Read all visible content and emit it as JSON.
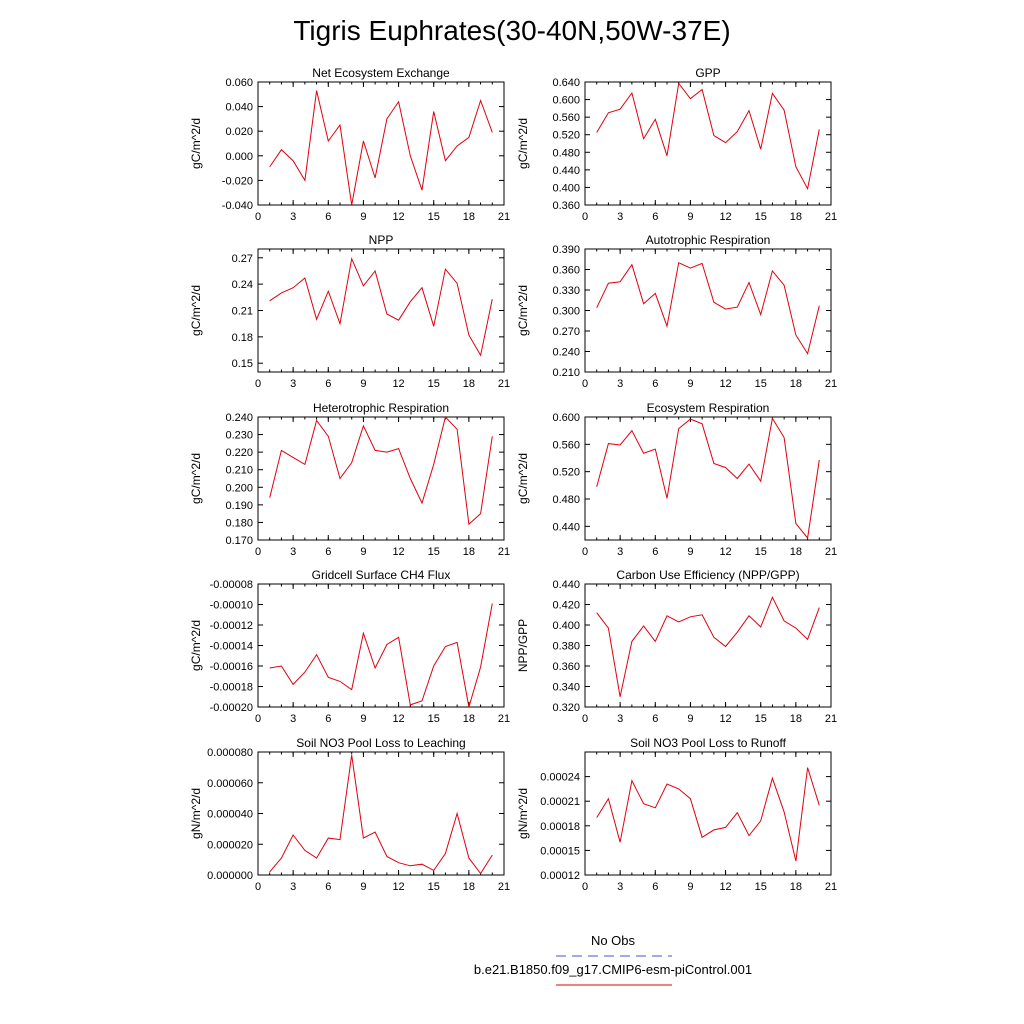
{
  "figure": {
    "title": "Tigris Euphrates(30-40N,50W-37E)",
    "line_color": "#e0000f",
    "obs_color": "#5050d0",
    "legend": [
      {
        "label": "No Obs",
        "color": "#5050d0",
        "dash": true
      },
      {
        "label": "b.e21.B1850.f09_g17.CMIP6-esm-piControl.001",
        "color": "#e0000f",
        "dash": false
      }
    ]
  },
  "chart_data": [
    {
      "type": "line",
      "title": "Net Ecosystem Exchange",
      "ylabel": "gC/m^2/d",
      "xlim": [
        0,
        21
      ],
      "xticks": [
        "0",
        "3",
        "6",
        "9",
        "12",
        "15",
        "18",
        "21"
      ],
      "ylim": [
        -0.04,
        0.06
      ],
      "yticks": [
        "-0.040",
        "-0.020",
        "0.000",
        "0.020",
        "0.040",
        "0.060"
      ],
      "x": [
        1,
        2,
        3,
        4,
        5,
        6,
        7,
        8,
        9,
        10,
        11,
        12,
        13,
        14,
        15,
        16,
        17,
        18,
        19,
        20
      ],
      "values": [
        -0.009,
        0.005,
        -0.004,
        -0.02,
        0.053,
        0.012,
        0.025,
        -0.04,
        0.012,
        -0.018,
        0.03,
        0.044,
        0.0,
        -0.028,
        0.036,
        -0.004,
        0.008,
        0.015,
        0.045,
        0.019
      ]
    },
    {
      "type": "line",
      "title": "GPP",
      "ylabel": "gC/m^2/d",
      "xlim": [
        0,
        21
      ],
      "xticks": [
        "0",
        "3",
        "6",
        "9",
        "12",
        "15",
        "18",
        "21"
      ],
      "ylim": [
        0.36,
        0.64
      ],
      "yticks": [
        "0.360",
        "0.400",
        "0.440",
        "0.480",
        "0.520",
        "0.560",
        "0.600",
        "0.640"
      ],
      "x": [
        1,
        2,
        3,
        4,
        5,
        6,
        7,
        8,
        9,
        10,
        11,
        12,
        13,
        14,
        15,
        16,
        17,
        18,
        19,
        20
      ],
      "values": [
        0.525,
        0.57,
        0.578,
        0.615,
        0.511,
        0.555,
        0.472,
        0.637,
        0.602,
        0.623,
        0.518,
        0.502,
        0.527,
        0.575,
        0.487,
        0.614,
        0.576,
        0.447,
        0.397,
        0.532
      ]
    },
    {
      "type": "line",
      "title": "NPP",
      "ylabel": "gC/m^2/d",
      "xlim": [
        0,
        21
      ],
      "xticks": [
        "0",
        "3",
        "6",
        "9",
        "12",
        "15",
        "18",
        "21"
      ],
      "ylim": [
        0.14,
        0.28
      ],
      "yticks": [
        "0.15",
        "0.18",
        "0.21",
        "0.24",
        "0.27"
      ],
      "x": [
        1,
        2,
        3,
        4,
        5,
        6,
        7,
        8,
        9,
        10,
        11,
        12,
        13,
        14,
        15,
        16,
        17,
        18,
        19,
        20
      ],
      "values": [
        0.221,
        0.23,
        0.236,
        0.247,
        0.2,
        0.232,
        0.195,
        0.269,
        0.238,
        0.255,
        0.206,
        0.199,
        0.22,
        0.236,
        0.192,
        0.257,
        0.241,
        0.182,
        0.159,
        0.223
      ]
    },
    {
      "type": "line",
      "title": "Autotrophic Respiration",
      "ylabel": "gC/m^2/d",
      "xlim": [
        0,
        21
      ],
      "xticks": [
        "0",
        "3",
        "6",
        "9",
        "12",
        "15",
        "18",
        "21"
      ],
      "ylim": [
        0.21,
        0.39
      ],
      "yticks": [
        "0.210",
        "0.240",
        "0.270",
        "0.300",
        "0.330",
        "0.360",
        "0.390"
      ],
      "x": [
        1,
        2,
        3,
        4,
        5,
        6,
        7,
        8,
        9,
        10,
        11,
        12,
        13,
        14,
        15,
        16,
        17,
        18,
        19,
        20
      ],
      "values": [
        0.304,
        0.34,
        0.342,
        0.367,
        0.31,
        0.325,
        0.277,
        0.37,
        0.362,
        0.369,
        0.312,
        0.302,
        0.305,
        0.341,
        0.294,
        0.358,
        0.337,
        0.264,
        0.237,
        0.307
      ]
    },
    {
      "type": "line",
      "title": "Heterotrophic Respiration",
      "ylabel": "gC/m^2/d",
      "xlim": [
        0,
        21
      ],
      "xticks": [
        "0",
        "3",
        "6",
        "9",
        "12",
        "15",
        "18",
        "21"
      ],
      "ylim": [
        0.17,
        0.24
      ],
      "yticks": [
        "0.170",
        "0.180",
        "0.190",
        "0.200",
        "0.210",
        "0.220",
        "0.230",
        "0.240"
      ],
      "x": [
        1,
        2,
        3,
        4,
        5,
        6,
        7,
        8,
        9,
        10,
        11,
        12,
        13,
        14,
        15,
        16,
        17,
        18,
        19,
        20
      ],
      "values": [
        0.194,
        0.221,
        0.217,
        0.213,
        0.238,
        0.229,
        0.205,
        0.214,
        0.235,
        0.221,
        0.22,
        0.222,
        0.205,
        0.191,
        0.213,
        0.24,
        0.233,
        0.179,
        0.185,
        0.229
      ]
    },
    {
      "type": "line",
      "title": "Ecosystem Respiration",
      "ylabel": "gC/m^2/d",
      "xlim": [
        0,
        21
      ],
      "xticks": [
        "0",
        "3",
        "6",
        "9",
        "12",
        "15",
        "18",
        "21"
      ],
      "ylim": [
        0.42,
        0.6
      ],
      "yticks": [
        "0.440",
        "0.480",
        "0.520",
        "0.560",
        "0.600"
      ],
      "x": [
        1,
        2,
        3,
        4,
        5,
        6,
        7,
        8,
        9,
        10,
        11,
        12,
        13,
        14,
        15,
        16,
        17,
        18,
        19,
        20
      ],
      "values": [
        0.498,
        0.561,
        0.559,
        0.58,
        0.547,
        0.553,
        0.481,
        0.583,
        0.597,
        0.59,
        0.532,
        0.526,
        0.51,
        0.531,
        0.506,
        0.598,
        0.57,
        0.444,
        0.423,
        0.537
      ]
    },
    {
      "type": "line",
      "title": "Gridcell Surface CH4 Flux",
      "ylabel": "gC/m^2/d",
      "xlim": [
        0,
        21
      ],
      "xticks": [
        "0",
        "3",
        "6",
        "9",
        "12",
        "15",
        "18",
        "21"
      ],
      "ylim": [
        -0.0002,
        -8e-05
      ],
      "yticks": [
        "-0.00020",
        "-0.00018",
        "-0.00016",
        "-0.00014",
        "-0.00012",
        "-0.00010",
        "-0.00008"
      ],
      "x": [
        1,
        2,
        3,
        4,
        5,
        6,
        7,
        8,
        9,
        10,
        11,
        12,
        13,
        14,
        15,
        16,
        17,
        18,
        19,
        20
      ],
      "values": [
        -0.000162,
        -0.00016,
        -0.000178,
        -0.000166,
        -0.000149,
        -0.000171,
        -0.000175,
        -0.000183,
        -0.000128,
        -0.000162,
        -0.000139,
        -0.000132,
        -0.000198,
        -0.000194,
        -0.00016,
        -0.000141,
        -0.000137,
        -0.0002,
        -0.000161,
        -9.9e-05
      ]
    },
    {
      "type": "line",
      "title": "Carbon Use Efficiency (NPP/GPP)",
      "ylabel": "NPP/GPP",
      "xlim": [
        0,
        21
      ],
      "xticks": [
        "0",
        "3",
        "6",
        "9",
        "12",
        "15",
        "18",
        "21"
      ],
      "ylim": [
        0.32,
        0.44
      ],
      "yticks": [
        "0.320",
        "0.340",
        "0.360",
        "0.380",
        "0.400",
        "0.420",
        "0.440"
      ],
      "x": [
        1,
        2,
        3,
        4,
        5,
        6,
        7,
        8,
        9,
        10,
        11,
        12,
        13,
        14,
        15,
        16,
        17,
        18,
        19,
        20
      ],
      "values": [
        0.412,
        0.397,
        0.33,
        0.384,
        0.399,
        0.384,
        0.409,
        0.403,
        0.408,
        0.41,
        0.388,
        0.379,
        0.393,
        0.409,
        0.398,
        0.427,
        0.404,
        0.397,
        0.386,
        0.417
      ]
    },
    {
      "type": "line",
      "title": "Soil NO3 Pool Loss to Leaching",
      "ylabel": "gN/m^2/d",
      "xlim": [
        0,
        21
      ],
      "xticks": [
        "0",
        "3",
        "6",
        "9",
        "12",
        "15",
        "18",
        "21"
      ],
      "ylim": [
        0,
        8e-05
      ],
      "yticks": [
        "0.000000",
        "0.000020",
        "0.000040",
        "0.000060",
        "0.000080"
      ],
      "x": [
        1,
        2,
        3,
        4,
        5,
        6,
        7,
        8,
        9,
        10,
        11,
        12,
        13,
        14,
        15,
        16,
        17,
        18,
        19,
        20
      ],
      "values": [
        2e-06,
        1.1e-05,
        2.6e-05,
        1.6e-05,
        1.1e-05,
        2.4e-05,
        2.3e-05,
        7.8e-05,
        2.4e-05,
        2.8e-05,
        1.2e-05,
        8e-06,
        6e-06,
        7e-06,
        3e-06,
        1.4e-05,
        4e-05,
        1.1e-05,
        1e-06,
        1.3e-05
      ]
    },
    {
      "type": "line",
      "title": "Soil NO3 Pool Loss to Runoff",
      "ylabel": "gN/m^2/d",
      "xlim": [
        0,
        21
      ],
      "xticks": [
        "0",
        "3",
        "6",
        "9",
        "12",
        "15",
        "18",
        "21"
      ],
      "ylim": [
        0.00012,
        0.00027
      ],
      "yticks": [
        "0.00012",
        "0.00015",
        "0.00018",
        "0.00021",
        "0.00024"
      ],
      "x": [
        1,
        2,
        3,
        4,
        5,
        6,
        7,
        8,
        9,
        10,
        11,
        12,
        13,
        14,
        15,
        16,
        17,
        18,
        19,
        20
      ],
      "values": [
        0.00019,
        0.000213,
        0.00016,
        0.000235,
        0.000207,
        0.000202,
        0.000231,
        0.000225,
        0.000213,
        0.000166,
        0.000175,
        0.000178,
        0.000196,
        0.000168,
        0.000186,
        0.000238,
        0.000197,
        0.000137,
        0.000251,
        0.000205
      ]
    }
  ]
}
